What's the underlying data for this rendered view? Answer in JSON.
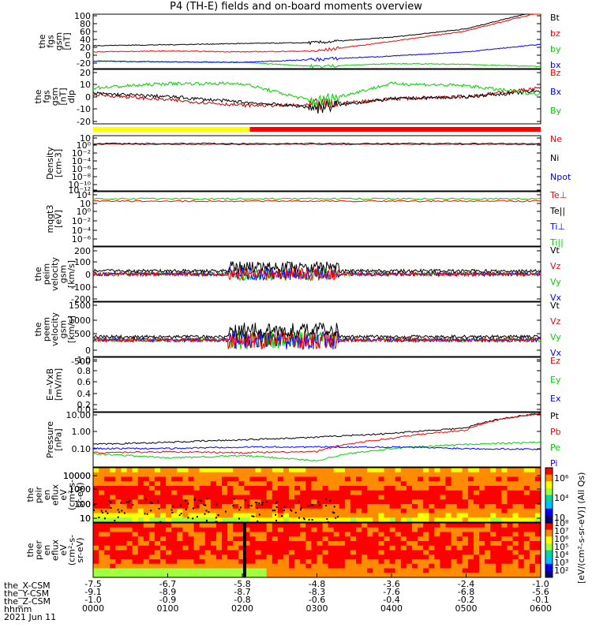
{
  "title": "P4 (TH-E) fields and on-board moments overview",
  "colors": {
    "black": "#000000",
    "red": "#ff0000",
    "green": "#00d000",
    "blue": "#0000ff",
    "yellow": "#ffff00"
  },
  "panels": [
    {
      "ylabel": [
        "the",
        "fgs",
        "gsm",
        "[nT]"
      ],
      "ticks": [
        "100",
        "80",
        "60",
        "40",
        "20",
        "0",
        "-20"
      ],
      "legend": [
        {
          "text": "Bt",
          "color": "#000000"
        },
        {
          "text": "bz",
          "color": "#ff0000"
        },
        {
          "text": "by",
          "color": "#00d000"
        },
        {
          "text": "bx",
          "color": "#0000ff"
        }
      ]
    },
    {
      "ylabel": [
        "the",
        "fgs",
        "gsm",
        "[nT]",
        "dlp"
      ],
      "ticks": [
        "20",
        "10",
        "0",
        "-10",
        "-20"
      ],
      "legend": [
        {
          "text": "Bz",
          "color": "#ff0000"
        },
        {
          "text": "Bx",
          "color": "#0000ff"
        },
        {
          "text": "By",
          "color": "#00d000"
        }
      ]
    },
    {
      "ylabel": [
        "Density",
        "[cm-3]"
      ],
      "ticks": [
        "10⁲",
        "10⁰",
        "10⁻²",
        "10⁻⁴",
        "10⁻⁶",
        "10⁻⁸",
        "10⁻¹⁰",
        "10⁻¹²"
      ],
      "legend": [
        {
          "text": "Ne",
          "color": "#ff0000"
        },
        {
          "text": "Ni",
          "color": "#000000"
        },
        {
          "text": "Npot",
          "color": "#0000ff"
        }
      ]
    },
    {
      "ylabel": [
        "mqgt3",
        "[eV]"
      ],
      "ticks": [
        "10⁴",
        "10⁲",
        "10⁰",
        "10⁻²",
        "10⁻⁴",
        "10⁻⁶"
      ],
      "legend": [
        {
          "text": "Te⊥",
          "color": "#ff0000"
        },
        {
          "text": "Te||",
          "color": "#000000"
        },
        {
          "text": "Ti⊥",
          "color": "#0000ff"
        },
        {
          "text": "Ti||",
          "color": "#00d000"
        }
      ]
    },
    {
      "ylabel": [
        "the",
        "peim",
        "velocity",
        "gsm",
        "[km/s]"
      ],
      "ticks": [
        "200",
        "100",
        "0",
        "-100",
        "-200"
      ],
      "legend": [
        {
          "text": "Vt",
          "color": "#000000"
        },
        {
          "text": "Vz",
          "color": "#ff0000"
        },
        {
          "text": "Vy",
          "color": "#00d000"
        },
        {
          "text": "Vx",
          "color": "#0000ff"
        }
      ]
    },
    {
      "ylabel": [
        "the",
        "peem",
        "velocity",
        "gsm",
        "[km/s]"
      ],
      "ticks": [
        "1500",
        "1000",
        "500",
        "0",
        "-500"
      ],
      "legend": [
        {
          "text": "Vt",
          "color": "#000000"
        },
        {
          "text": "Vz",
          "color": "#ff0000"
        },
        {
          "text": "Vy",
          "color": "#00d000"
        },
        {
          "text": "Vx",
          "color": "#0000ff"
        }
      ]
    },
    {
      "ylabel": [
        "E=-VxB",
        "[mV/m]"
      ],
      "ticks": [
        "1.0",
        "0.8",
        "0.6",
        "0.4",
        "0.2",
        "0.0"
      ],
      "legend": [
        {
          "text": "Ez",
          "color": "#ff0000"
        },
        {
          "text": "Ey",
          "color": "#00d000"
        },
        {
          "text": "Ex",
          "color": "#0000ff"
        }
      ]
    },
    {
      "ylabel": [
        "Pressure",
        "[nPa]"
      ],
      "ticks": [
        "10.00",
        "1.00",
        "0.10"
      ],
      "legend": [
        {
          "text": "Pt",
          "color": "#000000"
        },
        {
          "text": "Pb",
          "color": "#ff0000"
        },
        {
          "text": "Pe",
          "color": "#00d000"
        },
        {
          "text": "Pi",
          "color": "#0000ff"
        }
      ]
    },
    {
      "ylabel": [
        "the",
        "peir",
        "en",
        "eflux",
        "eV",
        "(cm²-s-",
        "sr-eV)"
      ],
      "ticks": [
        "10000",
        "1000",
        "100",
        "10"
      ],
      "legend": []
    },
    {
      "ylabel": [
        "the",
        "peer",
        "en",
        "eflux",
        "eV",
        "(cm²-s-",
        "sr-eV)"
      ],
      "ticks": [
        "10000",
        "1000",
        "100",
        "10"
      ],
      "legend": []
    }
  ],
  "colorbar1": {
    "ticks": [
      "10⁶",
      "10⁴",
      "10⁲"
    ],
    "label": "[eV/(cm²-s-sr-eV)] (All Qs)"
  },
  "colorbar2": {
    "ticks": [
      "10⁸",
      "10⁷",
      "10⁶",
      "10⁵",
      "10⁴",
      "10³",
      "10²"
    ],
    "label": "[eV/(cm²-s-sr-eV)] (All Qs)"
  },
  "bottom": {
    "row_labels": [
      "the_X-CSM",
      "the_Y-CSM",
      "the_Z-CSM",
      "hhmm",
      "2021 Jun 11"
    ],
    "x_csm": [
      "-7.5",
      "-6.7",
      "-5.8",
      "-4.8",
      "-3.6",
      "-2.4",
      "-1.0"
    ],
    "y_csm": [
      "-9.1",
      "-8.9",
      "-8.7",
      "-8.3",
      "-7.6",
      "-6.8",
      "-5.6"
    ],
    "z_csm": [
      "-1.0",
      "-0.9",
      "-0.8",
      "-0.6",
      "-0.4",
      "-0.2",
      "-0.1"
    ],
    "hhmm": [
      "0000",
      "0100",
      "0200",
      "0300",
      "0400",
      "0500",
      "0600"
    ]
  },
  "chart_data": [
    {
      "type": "line",
      "title": "P4 (TH-E) fields and on-board moments overview",
      "ylim": [
        -30,
        100
      ],
      "x": [
        "0000",
        "0100",
        "0200",
        "0300",
        "0400",
        "0500",
        "0600"
      ],
      "series": [
        {
          "name": "Bt",
          "values": [
            25,
            27,
            30,
            32,
            45,
            65,
            110
          ]
        },
        {
          "name": "bz",
          "values": [
            10,
            12,
            10,
            12,
            35,
            60,
            105
          ]
        },
        {
          "name": "by",
          "values": [
            -12,
            -14,
            -15,
            -25,
            -18,
            -20,
            -25
          ]
        },
        {
          "name": "bx",
          "values": [
            -12,
            -14,
            -15,
            -8,
            0,
            10,
            28
          ]
        }
      ]
    },
    {
      "type": "line",
      "ylim": [
        -25,
        25
      ],
      "x": [
        "0000",
        "0100",
        "0200",
        "0300",
        "0400",
        "0500",
        "0600"
      ],
      "series": [
        {
          "name": "Bz",
          "values": [
            2,
            -3,
            -8,
            -8,
            -2,
            0,
            8
          ]
        },
        {
          "name": "Bx",
          "values": [
            3,
            0,
            -5,
            -10,
            -2,
            0,
            5
          ]
        },
        {
          "name": "By",
          "values": [
            8,
            12,
            12,
            -5,
            12,
            10,
            2
          ]
        }
      ]
    },
    {
      "type": "line",
      "ylim": [
        "1e-13",
        "1e3"
      ],
      "x": [
        "0000",
        "0100",
        "0200",
        "0300",
        "0400",
        "0500",
        "0600"
      ],
      "series": [
        {
          "name": "Ne",
          "values": [
            0.3,
            0.3,
            0.3,
            0.4,
            0.4,
            0.5,
            1
          ]
        }
      ]
    },
    {
      "type": "line",
      "ylim": [
        "1e-7",
        "1e5"
      ],
      "x": [
        "0000",
        "0100",
        "0200",
        "0300",
        "0400",
        "0500",
        "0600"
      ],
      "series": [
        {
          "name": "Te⊥",
          "values": [
            800,
            900,
            1000,
            1000,
            1000,
            900,
            700
          ]
        },
        {
          "name": "Ti||",
          "values": [
            1500,
            2000,
            2000,
            2000,
            2000,
            2000,
            1500
          ]
        }
      ]
    },
    {
      "type": "line",
      "ylim": [
        -200,
        200
      ],
      "x": [
        "0000",
        "0100",
        "0200",
        "0300",
        "0400",
        "0500",
        "0600"
      ],
      "series": [
        {
          "name": "Vt",
          "values": [
            20,
            40,
            50,
            80,
            10,
            5,
            5
          ]
        },
        {
          "name": "Vz",
          "values": [
            0,
            -20,
            -20,
            -50,
            0,
            0,
            0
          ]
        }
      ]
    },
    {
      "type": "line",
      "ylim": [
        -700,
        1600
      ],
      "x": [
        "0000",
        "0100",
        "0200",
        "0300",
        "0400",
        "0500",
        "0600"
      ],
      "series": [
        {
          "name": "Vt",
          "values": [
            100,
            150,
            100,
            400,
            100,
            100,
            100
          ]
        },
        {
          "name": "Vz",
          "values": [
            -50,
            -50,
            0,
            -100,
            0,
            0,
            0
          ]
        }
      ]
    },
    {
      "type": "line",
      "ylim": [
        0,
        1
      ],
      "x": [
        "0000",
        "0100",
        "0200",
        "0300",
        "0400",
        "0500",
        "0600"
      ],
      "series": []
    },
    {
      "type": "line",
      "ylim": [
        "0.05",
        "10"
      ],
      "x": [
        "0000",
        "0100",
        "0200",
        "0300",
        "0400",
        "0500",
        "0600"
      ],
      "series": [
        {
          "name": "Pt",
          "values": [
            0.45,
            0.55,
            0.7,
            0.9,
            1.3,
            2.2,
            9
          ]
        },
        {
          "name": "Pb",
          "values": [
            0.2,
            0.22,
            0.2,
            0.22,
            0.8,
            1.8,
            9
          ]
        },
        {
          "name": "Pe",
          "values": [
            0.18,
            0.12,
            0.15,
            0.09,
            0.3,
            0.45,
            0.55
          ]
        },
        {
          "name": "Pi",
          "values": [
            0.3,
            0.3,
            0.35,
            0.35,
            0.35,
            0.3,
            0.28
          ]
        }
      ]
    },
    {
      "type": "heatmap",
      "ylim": [
        5,
        20000
      ],
      "x": [
        "0000",
        "0100",
        "0200",
        "0300",
        "0400",
        "0500",
        "0600"
      ]
    },
    {
      "type": "heatmap",
      "ylim": [
        5,
        20000
      ],
      "x": [
        "0000",
        "0100",
        "0200",
        "0300",
        "0400",
        "0500",
        "0600"
      ]
    }
  ]
}
